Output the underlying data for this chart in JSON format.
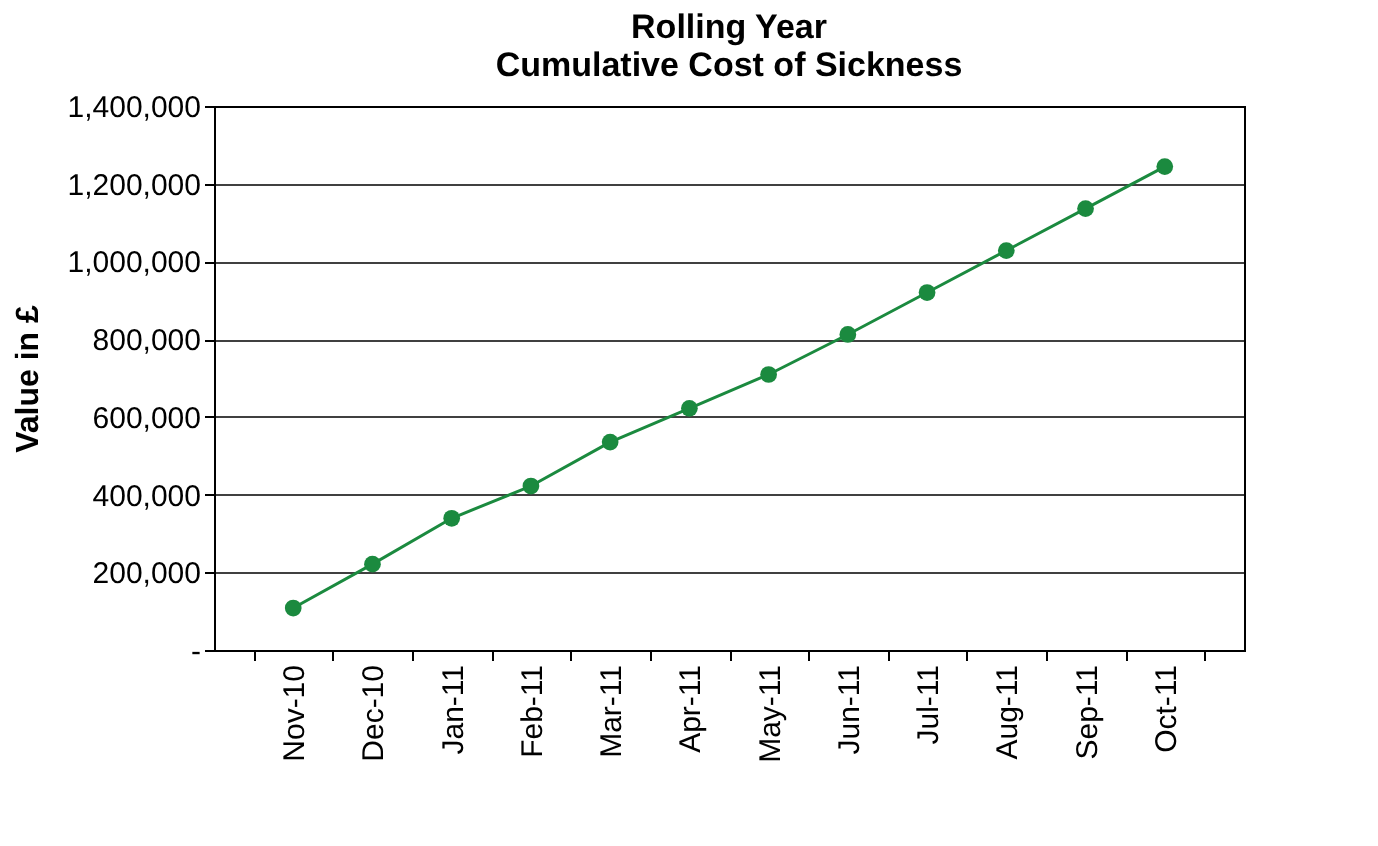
{
  "chart_data": {
    "type": "line",
    "title": "Rolling Year\nCumulative Cost of Sickness",
    "ylabel": "Value in £",
    "categories": [
      "Nov-10",
      "Dec-10",
      "Jan-11",
      "Feb-11",
      "Mar-11",
      "Apr-11",
      "May-11",
      "Jun-11",
      "Jul-11",
      "Aug-11",
      "Sep-11",
      "Oct-11"
    ],
    "series": [
      {
        "color": "#1b8a3f",
        "values": [
          108000,
          221000,
          339000,
          422000,
          535000,
          622000,
          709000,
          812000,
          920000,
          1028000,
          1136000,
          1244000
        ]
      }
    ],
    "ylim": [
      0,
      1400000
    ],
    "yticks": [
      {
        "value": 0,
        "label": "-"
      },
      {
        "value": 200000,
        "label": "200,000"
      },
      {
        "value": 400000,
        "label": "400,000"
      },
      {
        "value": 600000,
        "label": "600,000"
      },
      {
        "value": 800000,
        "label": "800,000"
      },
      {
        "value": 1000000,
        "label": "1,000,000"
      },
      {
        "value": 1200000,
        "label": "1,200,000"
      },
      {
        "value": 1400000,
        "label": "1,400,000"
      }
    ],
    "grid": "y",
    "marker": "circle",
    "line_style": "solid"
  }
}
